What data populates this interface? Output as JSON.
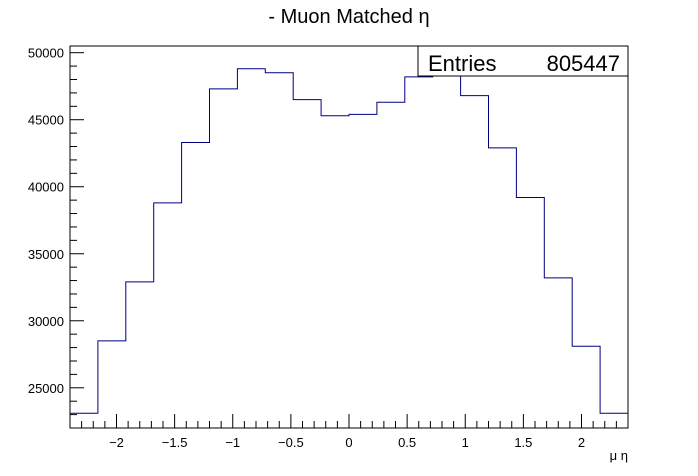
{
  "chart_data": {
    "type": "histogram",
    "title": "- Muon Matched η",
    "xlabel": "μ η",
    "ylabel": "",
    "xlim": [
      -2.4,
      2.4
    ],
    "ylim": [
      22000,
      50500
    ],
    "bin_edges": [
      -2.4,
      -2.16,
      -1.92,
      -1.68,
      -1.44,
      -1.2,
      -0.96,
      -0.72,
      -0.48,
      -0.24,
      0.0,
      0.24,
      0.48,
      0.72,
      0.96,
      1.2,
      1.44,
      1.68,
      1.92,
      2.16,
      2.4
    ],
    "values": [
      23100,
      28500,
      32900,
      38800,
      43300,
      47300,
      48800,
      48500,
      46500,
      45300,
      45400,
      46300,
      48200,
      48500,
      46800,
      42900,
      39200,
      33200,
      28100,
      23100
    ],
    "x_ticks": [
      -2,
      -1.5,
      -1,
      -0.5,
      0,
      0.5,
      1,
      1.5,
      2
    ],
    "x_tick_labels": [
      "−2",
      "−1.5",
      "−1",
      "−0.5",
      "0",
      "0.5",
      "1",
      "1.5",
      "2"
    ],
    "y_ticks": [
      25000,
      30000,
      35000,
      40000,
      45000,
      50000
    ],
    "y_tick_labels": [
      "25000",
      "30000",
      "35000",
      "40000",
      "45000",
      "50000"
    ],
    "grid": false,
    "line_color": "#000080",
    "stats_box": {
      "label": "Entries",
      "value": "805447"
    }
  }
}
